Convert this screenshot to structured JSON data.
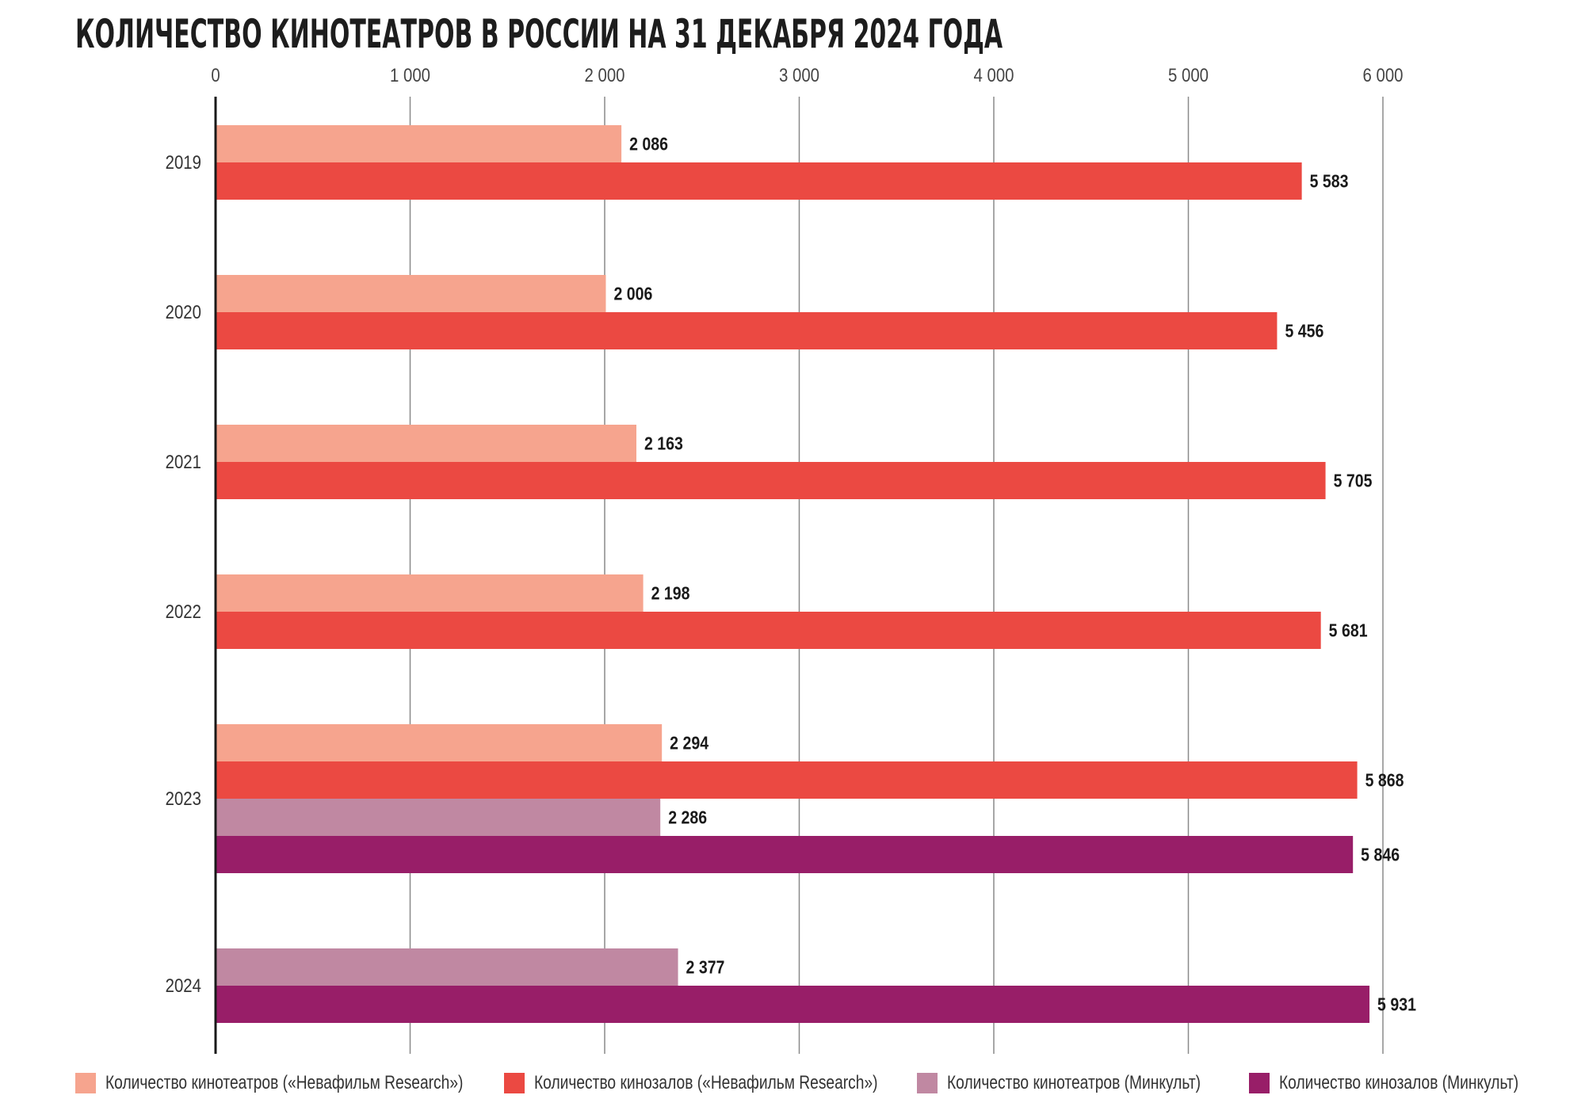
{
  "chart_data": {
    "type": "bar",
    "orientation": "horizontal",
    "title": "КОЛИЧЕСТВО КИНОТЕАТРОВ В РОССИИ НА 31 ДЕКАБРЯ 2024 ГОДА",
    "xlim": [
      0,
      6000
    ],
    "x_ticks": [
      0,
      1000,
      2000,
      3000,
      4000,
      5000,
      6000
    ],
    "x_tick_labels": [
      "0",
      "1 000",
      "2 000",
      "3 000",
      "4 000",
      "5 000",
      "6 000"
    ],
    "grid": "vertical",
    "categories": [
      "2019",
      "2020",
      "2021",
      "2022",
      "2023",
      "2024"
    ],
    "legend_position": "bottom",
    "series": [
      {
        "name": "Количество кинотеатров («Невафильм Research»)",
        "color": "#f6a48e",
        "values": [
          2086,
          2006,
          2163,
          2198,
          2294,
          null
        ],
        "labels": [
          "2 086",
          "2 006",
          "2 163",
          "2 198",
          "2 294",
          ""
        ]
      },
      {
        "name": "Количество кинозалов («Невафильм Research»)",
        "color": "#eb4942",
        "values": [
          5583,
          5456,
          5705,
          5681,
          5868,
          null
        ],
        "labels": [
          "5 583",
          "5 456",
          "5 705",
          "5 681",
          "5 868",
          ""
        ]
      },
      {
        "name": "Количество кинотеатров (Минкульт)",
        "color": "#c088a2",
        "values": [
          null,
          null,
          null,
          null,
          2286,
          2377
        ],
        "labels": [
          "",
          "",
          "",
          "",
          "2 286",
          "2 377"
        ]
      },
      {
        "name": "Количество кинозалов (Минкульт)",
        "color": "#981e68",
        "values": [
          null,
          null,
          null,
          null,
          5846,
          5931
        ],
        "labels": [
          "",
          "",
          "",
          "",
          "5 846",
          "5 931"
        ]
      }
    ]
  }
}
